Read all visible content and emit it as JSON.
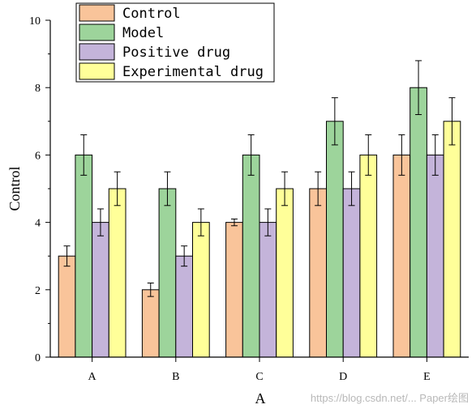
{
  "chart_data": {
    "type": "bar",
    "categories": [
      "A",
      "B",
      "C",
      "D",
      "E"
    ],
    "series": [
      {
        "name": "Control",
        "values": [
          3,
          2,
          4,
          5,
          6
        ],
        "errors": [
          0.3,
          0.2,
          0.1,
          0.5,
          0.6
        ],
        "color": "#f9c49a"
      },
      {
        "name": "Model",
        "values": [
          6,
          5,
          6,
          7,
          8
        ],
        "errors": [
          0.6,
          0.5,
          0.6,
          0.7,
          0.8
        ],
        "color": "#9dd49b"
      },
      {
        "name": "Positive drug",
        "values": [
          4,
          3,
          4,
          5,
          6
        ],
        "errors": [
          0.4,
          0.3,
          0.4,
          0.5,
          0.6
        ],
        "color": "#c4b4da"
      },
      {
        "name": "Experimental drug",
        "values": [
          5,
          4,
          5,
          6,
          7
        ],
        "errors": [
          0.5,
          0.4,
          0.5,
          0.6,
          0.7
        ],
        "color": "#ffff99"
      }
    ],
    "xlabel": "A",
    "ylabel": "Control",
    "ylim": [
      0,
      10
    ],
    "yticks": [
      0,
      2,
      4,
      6,
      8,
      10
    ],
    "grid": false,
    "legend_position": "top-left"
  },
  "watermark": "https://blog.csdn.net/... Paper绘图"
}
